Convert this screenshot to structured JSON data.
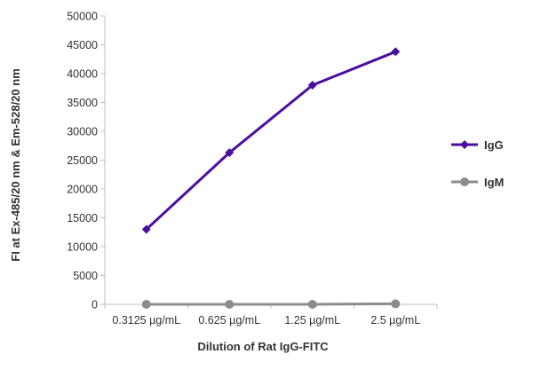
{
  "chart_data": {
    "type": "line",
    "categories": [
      "0.3125 µg/mL",
      "0.625 µg/mL",
      "1.25 µg/mL",
      "2.5 µg/mL"
    ],
    "series": [
      {
        "name": "IgG",
        "values": [
          13000,
          26300,
          38000,
          43800
        ],
        "color": "#4B0FA0",
        "marker": "diamond"
      },
      {
        "name": "IgM",
        "values": [
          0,
          0,
          0,
          100
        ],
        "color": "#8C8C8C",
        "marker": "circle"
      }
    ],
    "xlabel": "Dilution of Rat IgG-FITC",
    "ylabel": "FI at Ex-485/20 nm & Em-528/20 nm",
    "ylim": [
      0,
      50000
    ],
    "yticks": [
      0,
      5000,
      10000,
      15000,
      20000,
      25000,
      30000,
      35000,
      40000,
      45000,
      50000
    ],
    "grid": false,
    "legend": "right"
  }
}
